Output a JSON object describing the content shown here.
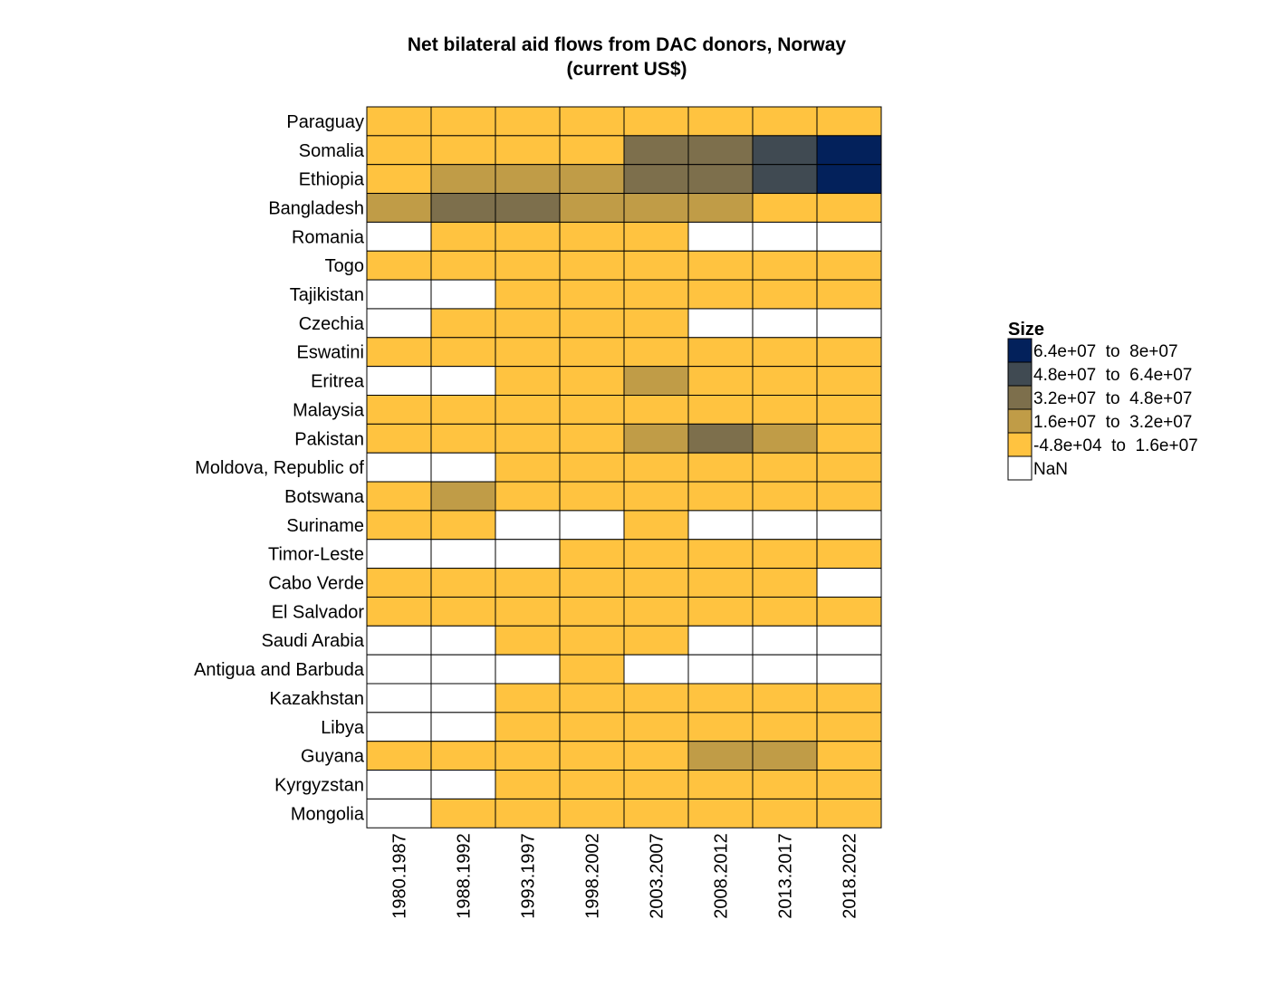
{
  "chart_data": {
    "type": "heatmap",
    "title": "Net bilateral aid flows from DAC donors, Norway",
    "subtitle": "(current US$)",
    "xlabel": "",
    "ylabel": "",
    "x": [
      "1980.1987",
      "1988.1992",
      "1993.1997",
      "1998.2002",
      "2003.2007",
      "2008.2012",
      "2013.2017",
      "2018.2022"
    ],
    "y": [
      "Paraguay",
      "Somalia",
      "Ethiopia",
      "Bangladesh",
      "Romania",
      "Togo",
      "Tajikistan",
      "Czechia",
      "Eswatini",
      "Eritrea",
      "Malaysia",
      "Pakistan",
      "Moldova, Republic of",
      "Botswana",
      "Suriname",
      "Timor-Leste",
      "Cabo Verde",
      "El Salvador",
      "Saudi Arabia",
      "Antigua and Barbuda",
      "Kazakhstan",
      "Libya",
      "Guyana",
      "Kyrgyzstan",
      "Mongolia"
    ],
    "bin_index_note": "values are legend bin indices: 0=-4.8e+04 to 1.6e+07, 1=1.6e+07 to 3.2e+07, 2=3.2e+07 to 4.8e+07, 3=4.8e+07 to 6.4e+07, 4=6.4e+07 to 8e+07, null=NaN",
    "values": [
      [
        0,
        0,
        0,
        0,
        0,
        0,
        0,
        0
      ],
      [
        0,
        0,
        0,
        0,
        2,
        2,
        3,
        4
      ],
      [
        0,
        1,
        1,
        1,
        2,
        2,
        3,
        4
      ],
      [
        1,
        2,
        2,
        1,
        1,
        1,
        0,
        0
      ],
      [
        null,
        0,
        0,
        0,
        0,
        null,
        null,
        null
      ],
      [
        0,
        0,
        0,
        0,
        0,
        0,
        0,
        0
      ],
      [
        null,
        null,
        0,
        0,
        0,
        0,
        0,
        0
      ],
      [
        null,
        0,
        0,
        0,
        0,
        null,
        null,
        null
      ],
      [
        0,
        0,
        0,
        0,
        0,
        0,
        0,
        0
      ],
      [
        null,
        null,
        0,
        0,
        1,
        0,
        0,
        0
      ],
      [
        0,
        0,
        0,
        0,
        0,
        0,
        0,
        0
      ],
      [
        0,
        0,
        0,
        0,
        1,
        2,
        1,
        0
      ],
      [
        null,
        null,
        0,
        0,
        0,
        0,
        0,
        0
      ],
      [
        0,
        1,
        0,
        0,
        0,
        0,
        0,
        0
      ],
      [
        0,
        0,
        null,
        null,
        0,
        null,
        null,
        null
      ],
      [
        null,
        null,
        null,
        0,
        0,
        0,
        0,
        0
      ],
      [
        0,
        0,
        0,
        0,
        0,
        0,
        0,
        null
      ],
      [
        0,
        0,
        0,
        0,
        0,
        0,
        0,
        0
      ],
      [
        null,
        null,
        0,
        0,
        0,
        null,
        null,
        null
      ],
      [
        null,
        null,
        null,
        0,
        null,
        null,
        null,
        null
      ],
      [
        null,
        null,
        0,
        0,
        0,
        0,
        0,
        0
      ],
      [
        null,
        null,
        0,
        0,
        0,
        0,
        0,
        0
      ],
      [
        0,
        0,
        0,
        0,
        0,
        1,
        1,
        0
      ],
      [
        null,
        null,
        0,
        0,
        0,
        0,
        0,
        0
      ],
      [
        null,
        0,
        0,
        0,
        0,
        0,
        0,
        0
      ]
    ],
    "legend": {
      "title": "Size",
      "position": "right",
      "bins": [
        {
          "label": "6.4e+07  to  8e+07",
          "color": "#03215b"
        },
        {
          "label": "4.8e+07  to  6.4e+07",
          "color": "#404a52"
        },
        {
          "label": "3.2e+07  to  4.8e+07",
          "color": "#7d6f4c"
        },
        {
          "label": "1.6e+07  to  3.2e+07",
          "color": "#c09c47"
        },
        {
          "label": "-4.8e+04  to  1.6e+07",
          "color": "#ffc340"
        }
      ],
      "nan_label": "NaN",
      "nan_color": "#ffffff"
    },
    "grid": true
  }
}
